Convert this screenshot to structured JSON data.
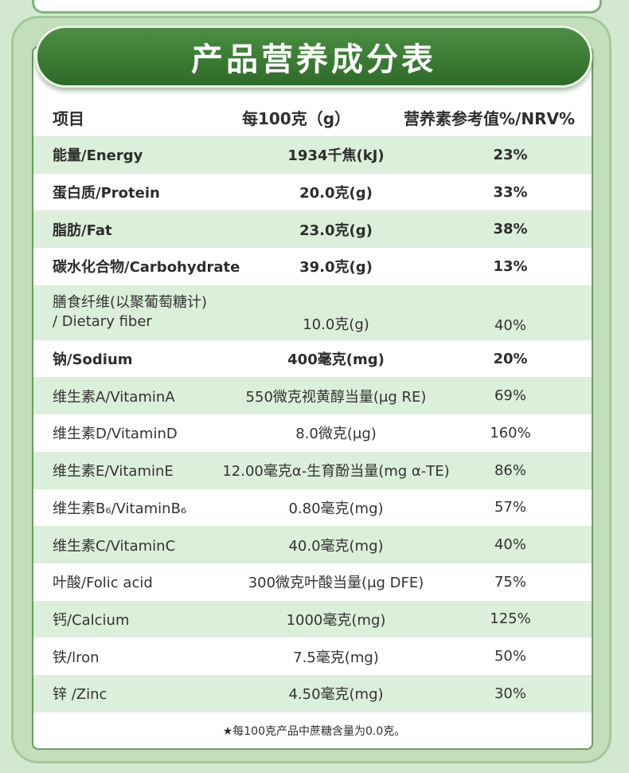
{
  "title": "产品营养成分表",
  "header": {
    "item": "项目",
    "per100": "每100克（g）",
    "nrv": "营养素参考值%/NRV%"
  },
  "rows": [
    {
      "name": "能量/Energy",
      "amount": "1934千焦(kJ)",
      "nrv": "23%"
    },
    {
      "name": "蛋白质/Protein",
      "amount": "20.0克(g)",
      "nrv": "33%"
    },
    {
      "name": "脂肪/Fat",
      "amount": "23.0克(g)",
      "nrv": "38%"
    },
    {
      "name": "碳水化合物/Carbohydrate",
      "amount": "39.0克(g)",
      "nrv": "13%"
    },
    {
      "name_line1": "膳食纤维(以聚葡萄糖计)",
      "name_line2": "/ Dietary fiber",
      "amount": "10.0克(g)",
      "nrv": "40%"
    },
    {
      "name": "钠/Sodium",
      "amount": "400毫克(mg)",
      "nrv": "20%"
    },
    {
      "name": "维生素A/VitaminA",
      "amount": "550微克视黄醇当量(μg RE)",
      "nrv": "69%"
    },
    {
      "name": "维生素D/VitaminD",
      "amount": "8.0微克(μg)",
      "nrv": "160%"
    },
    {
      "name": "维生素E/VitaminE",
      "amount": "12.00毫克α-生育酚当量(mg α-TE)",
      "nrv": "86%"
    },
    {
      "name": "维生素B₆/VitaminB₆",
      "amount": "0.80毫克(mg)",
      "nrv": "57%"
    },
    {
      "name": "维生素C/VitaminC",
      "amount": "40.0毫克(mg)",
      "nrv": "40%"
    },
    {
      "name": "叶酸/Folic acid",
      "amount": "300微克叶酸当量(μg DFE)",
      "nrv": "75%"
    },
    {
      "name": "钙/Calcium",
      "amount": "1000毫克(mg)",
      "nrv": "125%"
    },
    {
      "name": "铁/lron",
      "amount": "7.5毫克(mg)",
      "nrv": "50%"
    },
    {
      "name": "锌 /Zinc",
      "amount": "4.50毫克(mg)",
      "nrv": "30%"
    }
  ],
  "footnote": "★每100克产品中蔗糖含量为0.0克。"
}
